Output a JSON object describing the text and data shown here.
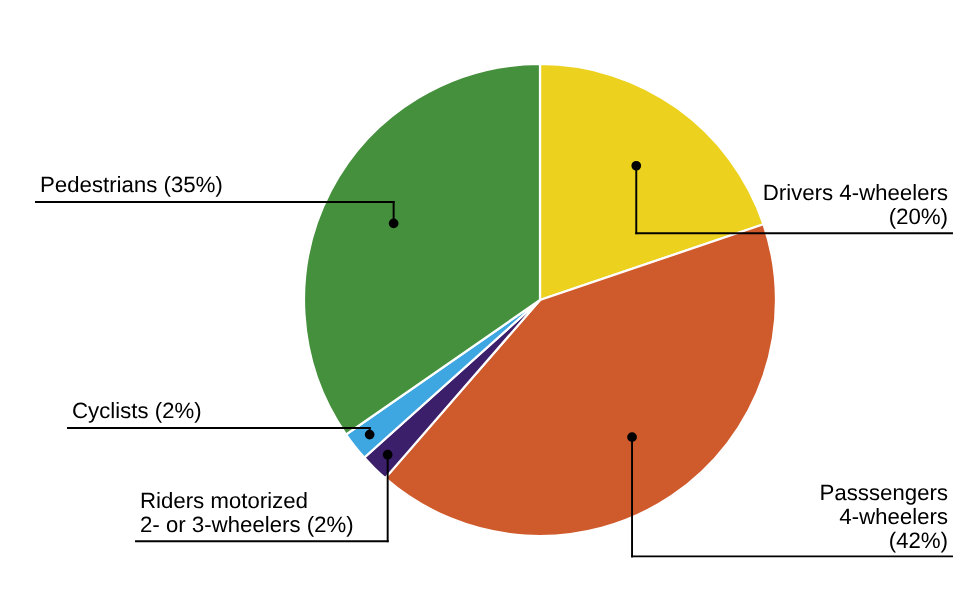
{
  "chart_data": {
    "type": "pie",
    "categories": [
      "Drivers 4-wheelers",
      "Passsengers\n4-wheelers",
      "Riders motorized\n2- or 3-wheelers",
      "Cyclists",
      "Pedestrians"
    ],
    "values": [
      20,
      42,
      2,
      2,
      35
    ],
    "value_labels": [
      "(20%)",
      "(42%)",
      "(2%)",
      "(2%)",
      "(35%)"
    ],
    "colors": [
      "#ecd21f",
      "#cf5a2c",
      "#3b1f6b",
      "#3ea6e0",
      "#44903c"
    ],
    "legend": false
  }
}
